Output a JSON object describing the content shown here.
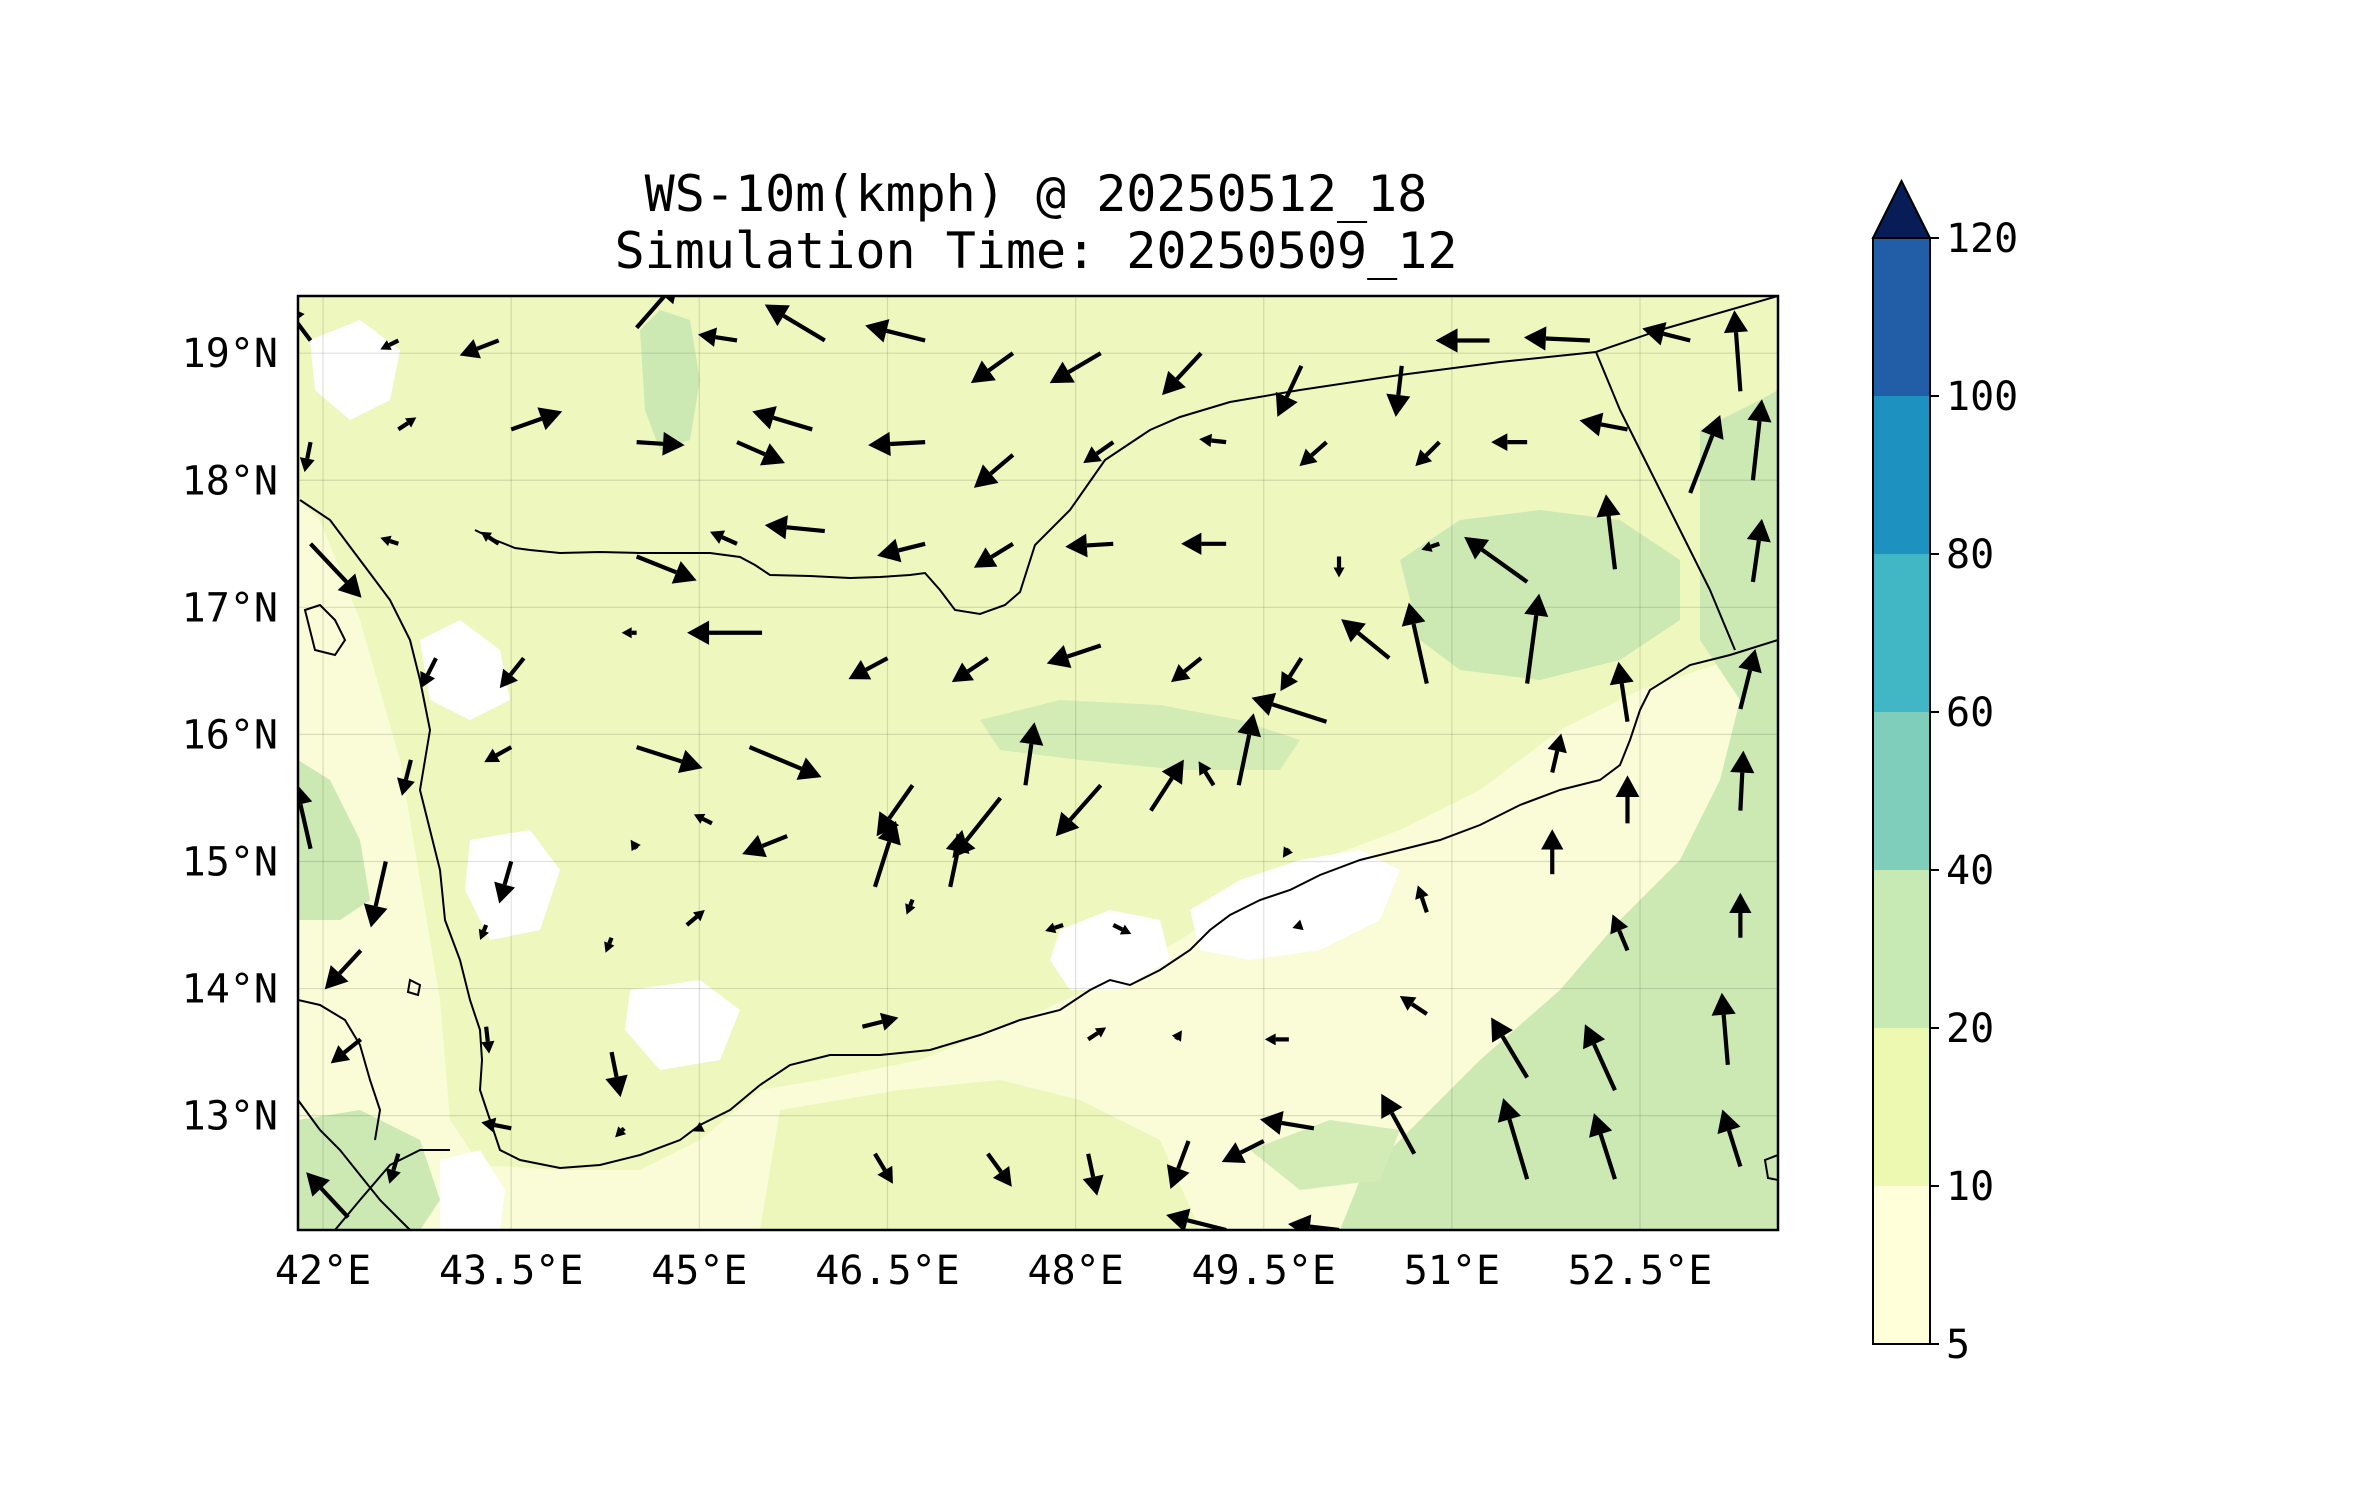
{
  "title": {
    "line1": "WS-10m(kmph) @ 20250512_18",
    "line2": "Simulation Time: 20250509_12"
  },
  "map": {
    "lon_range": [
      41.8,
      53.6
    ],
    "lat_range": [
      12.1,
      19.45
    ],
    "lon_ticks": [
      {
        "v": 42.0,
        "label": "42°E"
      },
      {
        "v": 43.5,
        "label": "43.5°E"
      },
      {
        "v": 45.0,
        "label": "45°E"
      },
      {
        "v": 46.5,
        "label": "46.5°E"
      },
      {
        "v": 48.0,
        "label": "48°E"
      },
      {
        "v": 49.5,
        "label": "49.5°E"
      },
      {
        "v": 51.0,
        "label": "51°E"
      },
      {
        "v": 52.5,
        "label": "52.5°E"
      }
    ],
    "lat_ticks": [
      {
        "v": 19,
        "label": "19°N"
      },
      {
        "v": 18,
        "label": "18°N"
      },
      {
        "v": 17,
        "label": "17°N"
      },
      {
        "v": 16,
        "label": "16°N"
      },
      {
        "v": 15,
        "label": "15°N"
      },
      {
        "v": 14,
        "label": "14°N"
      },
      {
        "v": 13,
        "label": "13°N"
      }
    ],
    "gridlines": true,
    "fill_colors": {
      "ocean_5_10": "#ffffe0",
      "land_10_20": "#eff8c0",
      "band_20_40": "#cce9b4",
      "calm": "#ffffff"
    }
  },
  "colorbar": {
    "levels": [
      "5",
      "10",
      "20",
      "40",
      "60",
      "80",
      "100",
      "120"
    ],
    "colors": [
      "#ffffd9",
      "#edf8b1",
      "#c7e9b4",
      "#7fcdbb",
      "#41b6c4",
      "#1d91c0",
      "#225ea8",
      "#253494"
    ],
    "extend_color": "#081d58",
    "extend": "max"
  },
  "wind_vectors": [
    {
      "lon": 41.9,
      "lat": 19.1,
      "u": -0.9,
      "v": 1.2
    },
    {
      "lon": 42.6,
      "lat": 19.1,
      "u": -0.6,
      "v": -0.3
    },
    {
      "lon": 43.4,
      "lat": 19.1,
      "u": -1.3,
      "v": -0.5
    },
    {
      "lon": 44.5,
      "lat": 19.2,
      "u": 1.4,
      "v": 1.6
    },
    {
      "lon": 45.3,
      "lat": 19.1,
      "u": -1.3,
      "v": 0.2
    },
    {
      "lon": 46.0,
      "lat": 19.1,
      "u": -2.0,
      "v": 1.2
    },
    {
      "lon": 46.8,
      "lat": 19.1,
      "u": -2.0,
      "v": 0.5
    },
    {
      "lon": 47.5,
      "lat": 19.0,
      "u": -1.4,
      "v": -1.0
    },
    {
      "lon": 48.2,
      "lat": 19.0,
      "u": -1.7,
      "v": -1.0
    },
    {
      "lon": 49.0,
      "lat": 19.0,
      "u": -1.3,
      "v": -1.4
    },
    {
      "lon": 49.8,
      "lat": 18.9,
      "u": -0.8,
      "v": -1.7
    },
    {
      "lon": 50.6,
      "lat": 18.9,
      "u": -0.2,
      "v": -1.7
    },
    {
      "lon": 51.3,
      "lat": 19.1,
      "u": -1.8,
      "v": 0.0
    },
    {
      "lon": 52.1,
      "lat": 19.1,
      "u": -2.2,
      "v": 0.1
    },
    {
      "lon": 52.9,
      "lat": 19.1,
      "u": -1.6,
      "v": 0.4
    },
    {
      "lon": 53.3,
      "lat": 18.7,
      "u": -0.2,
      "v": 2.7
    },
    {
      "lon": 41.9,
      "lat": 18.3,
      "u": -0.2,
      "v": -1.0
    },
    {
      "lon": 42.6,
      "lat": 18.4,
      "u": 0.6,
      "v": 0.4
    },
    {
      "lon": 43.5,
      "lat": 18.4,
      "u": 1.7,
      "v": 0.6
    },
    {
      "lon": 44.5,
      "lat": 18.3,
      "u": 1.6,
      "v": -0.1
    },
    {
      "lon": 45.3,
      "lat": 18.3,
      "u": 1.6,
      "v": -0.7
    },
    {
      "lon": 45.9,
      "lat": 18.4,
      "u": -2.0,
      "v": 0.6
    },
    {
      "lon": 46.8,
      "lat": 18.3,
      "u": -1.9,
      "v": -0.1
    },
    {
      "lon": 47.5,
      "lat": 18.2,
      "u": -1.3,
      "v": -1.1
    },
    {
      "lon": 48.3,
      "lat": 18.3,
      "u": -1.0,
      "v": -0.7
    },
    {
      "lon": 49.2,
      "lat": 18.3,
      "u": -0.9,
      "v": 0.1
    },
    {
      "lon": 50.0,
      "lat": 18.3,
      "u": -0.9,
      "v": -0.8
    },
    {
      "lon": 50.9,
      "lat": 18.3,
      "u": -0.8,
      "v": -0.8
    },
    {
      "lon": 51.6,
      "lat": 18.3,
      "u": -1.2,
      "v": 0.0
    },
    {
      "lon": 52.4,
      "lat": 18.4,
      "u": -1.6,
      "v": 0.3
    },
    {
      "lon": 52.9,
      "lat": 17.9,
      "u": 1.0,
      "v": 2.6
    },
    {
      "lon": 53.4,
      "lat": 18.0,
      "u": 0.3,
      "v": 2.7
    },
    {
      "lon": 41.9,
      "lat": 17.5,
      "u": 1.7,
      "v": -1.8
    },
    {
      "lon": 42.6,
      "lat": 17.5,
      "u": -0.6,
      "v": 0.2
    },
    {
      "lon": 43.4,
      "lat": 17.5,
      "u": -0.6,
      "v": 0.4
    },
    {
      "lon": 44.5,
      "lat": 17.4,
      "u": 2.0,
      "v": -0.8
    },
    {
      "lon": 45.3,
      "lat": 17.5,
      "u": -0.9,
      "v": 0.4
    },
    {
      "lon": 46.0,
      "lat": 17.6,
      "u": -2.0,
      "v": 0.2
    },
    {
      "lon": 46.8,
      "lat": 17.5,
      "u": -1.6,
      "v": -0.4
    },
    {
      "lon": 47.5,
      "lat": 17.5,
      "u": -1.3,
      "v": -0.8
    },
    {
      "lon": 48.3,
      "lat": 17.5,
      "u": -1.6,
      "v": -0.1
    },
    {
      "lon": 49.2,
      "lat": 17.5,
      "u": -1.5,
      "v": 0.0
    },
    {
      "lon": 50.1,
      "lat": 17.4,
      "u": 0.0,
      "v": -0.7
    },
    {
      "lon": 50.9,
      "lat": 17.5,
      "u": -0.6,
      "v": -0.2
    },
    {
      "lon": 51.6,
      "lat": 17.2,
      "u": -2.1,
      "v": 1.5
    },
    {
      "lon": 52.3,
      "lat": 17.3,
      "u": -0.3,
      "v": 2.5
    },
    {
      "lon": 53.4,
      "lat": 17.2,
      "u": 0.3,
      "v": 2.1
    },
    {
      "lon": 42.9,
      "lat": 16.6,
      "u": -0.5,
      "v": -1.0
    },
    {
      "lon": 43.6,
      "lat": 16.6,
      "u": -0.8,
      "v": -1.0
    },
    {
      "lon": 44.5,
      "lat": 16.8,
      "u": -0.5,
      "v": 0.0
    },
    {
      "lon": 45.5,
      "lat": 16.8,
      "u": -2.5,
      "v": 0.0
    },
    {
      "lon": 46.5,
      "lat": 16.6,
      "u": -1.3,
      "v": -0.7
    },
    {
      "lon": 47.3,
      "lat": 16.6,
      "u": -1.2,
      "v": -0.8
    },
    {
      "lon": 48.2,
      "lat": 16.7,
      "u": -1.8,
      "v": -0.6
    },
    {
      "lon": 49.0,
      "lat": 16.6,
      "u": -1.0,
      "v": -0.8
    },
    {
      "lon": 49.8,
      "lat": 16.6,
      "u": -0.7,
      "v": -1.1
    },
    {
      "lon": 50.5,
      "lat": 16.6,
      "u": -1.6,
      "v": 1.3
    },
    {
      "lon": 50.8,
      "lat": 16.4,
      "u": -0.6,
      "v": 2.7
    },
    {
      "lon": 51.6,
      "lat": 16.4,
      "u": 0.4,
      "v": 3.0
    },
    {
      "lon": 52.4,
      "lat": 16.1,
      "u": -0.3,
      "v": 2.0
    },
    {
      "lon": 53.3,
      "lat": 16.2,
      "u": 0.5,
      "v": 2.0
    },
    {
      "lon": 42.7,
      "lat": 15.8,
      "u": -0.3,
      "v": -1.2
    },
    {
      "lon": 43.5,
      "lat": 15.9,
      "u": -0.9,
      "v": -0.5
    },
    {
      "lon": 44.5,
      "lat": 15.9,
      "u": 2.2,
      "v": -0.7
    },
    {
      "lon": 45.4,
      "lat": 15.9,
      "u": 2.4,
      "v": -1.0
    },
    {
      "lon": 46.7,
      "lat": 15.6,
      "u": -1.2,
      "v": -1.7
    },
    {
      "lon": 47.4,
      "lat": 15.5,
      "u": -1.6,
      "v": -2.0
    },
    {
      "lon": 48.2,
      "lat": 15.6,
      "u": -1.5,
      "v": -1.7
    },
    {
      "lon": 49.1,
      "lat": 15.6,
      "u": -0.5,
      "v": 0.8
    },
    {
      "lon": 50.0,
      "lat": 16.1,
      "u": -2.5,
      "v": 0.8
    },
    {
      "lon": 41.9,
      "lat": 15.1,
      "u": -0.5,
      "v": 2.2
    },
    {
      "lon": 42.5,
      "lat": 15.0,
      "u": -0.5,
      "v": -2.2
    },
    {
      "lon": 43.5,
      "lat": 15.0,
      "u": -0.4,
      "v": -1.4
    },
    {
      "lon": 44.5,
      "lat": 15.1,
      "u": -0.2,
      "v": 0.3
    },
    {
      "lon": 45.1,
      "lat": 15.3,
      "u": -0.6,
      "v": 0.3
    },
    {
      "lon": 45.7,
      "lat": 15.2,
      "u": -1.5,
      "v": -0.6
    },
    {
      "lon": 46.4,
      "lat": 14.8,
      "u": 0.7,
      "v": 2.2
    },
    {
      "lon": 47.0,
      "lat": 14.8,
      "u": 0.4,
      "v": 1.9
    },
    {
      "lon": 47.6,
      "lat": 15.6,
      "u": 0.3,
      "v": 2.1
    },
    {
      "lon": 48.6,
      "lat": 15.4,
      "u": 1.1,
      "v": 1.7
    },
    {
      "lon": 49.3,
      "lat": 15.6,
      "u": 0.5,
      "v": 2.4
    },
    {
      "lon": 49.7,
      "lat": 15.1,
      "u": -0.2,
      "v": -0.3
    },
    {
      "lon": 51.8,
      "lat": 15.7,
      "u": 0.3,
      "v": 1.3
    },
    {
      "lon": 52.4,
      "lat": 15.3,
      "u": 0.0,
      "v": 1.6
    },
    {
      "lon": 53.3,
      "lat": 15.4,
      "u": 0.1,
      "v": 2.0
    },
    {
      "lon": 42.3,
      "lat": 14.3,
      "u": -1.2,
      "v": -1.3
    },
    {
      "lon": 43.3,
      "lat": 14.5,
      "u": -0.2,
      "v": -0.5
    },
    {
      "lon": 44.3,
      "lat": 14.4,
      "u": -0.2,
      "v": -0.5
    },
    {
      "lon": 44.9,
      "lat": 14.5,
      "u": 0.6,
      "v": 0.5
    },
    {
      "lon": 46.7,
      "lat": 14.7,
      "u": -0.2,
      "v": -0.5
    },
    {
      "lon": 47.9,
      "lat": 14.5,
      "u": -0.6,
      "v": -0.2
    },
    {
      "lon": 48.3,
      "lat": 14.5,
      "u": 0.6,
      "v": -0.3
    },
    {
      "lon": 49.8,
      "lat": 14.5,
      "u": -0.3,
      "v": -0.1
    },
    {
      "lon": 50.8,
      "lat": 14.6,
      "u": -0.3,
      "v": 0.9
    },
    {
      "lon": 51.8,
      "lat": 14.9,
      "u": 0.0,
      "v": 1.5
    },
    {
      "lon": 52.4,
      "lat": 14.3,
      "u": -0.5,
      "v": 1.2
    },
    {
      "lon": 53.3,
      "lat": 14.4,
      "u": 0.0,
      "v": 1.5
    },
    {
      "lon": 42.3,
      "lat": 13.6,
      "u": -1.0,
      "v": -0.8
    },
    {
      "lon": 43.3,
      "lat": 13.7,
      "u": 0.1,
      "v": -0.9
    },
    {
      "lon": 44.3,
      "lat": 13.5,
      "u": 0.3,
      "v": -1.5
    },
    {
      "lon": 46.3,
      "lat": 13.7,
      "u": 1.2,
      "v": 0.3
    },
    {
      "lon": 48.1,
      "lat": 13.6,
      "u": 0.6,
      "v": 0.4
    },
    {
      "lon": 48.8,
      "lat": 13.6,
      "u": 0.2,
      "v": 0.3
    },
    {
      "lon": 49.7,
      "lat": 13.6,
      "u": -0.8,
      "v": 0.0
    },
    {
      "lon": 50.8,
      "lat": 13.8,
      "u": -0.9,
      "v": 0.6
    },
    {
      "lon": 51.6,
      "lat": 13.3,
      "u": -1.2,
      "v": 2.0
    },
    {
      "lon": 52.3,
      "lat": 13.2,
      "u": -1.0,
      "v": 2.2
    },
    {
      "lon": 53.2,
      "lat": 13.4,
      "u": -0.2,
      "v": 2.4
    },
    {
      "lon": 42.6,
      "lat": 12.7,
      "u": -0.3,
      "v": -1.0
    },
    {
      "lon": 43.5,
      "lat": 12.9,
      "u": -1.0,
      "v": 0.2
    },
    {
      "lon": 44.4,
      "lat": 12.9,
      "u": -0.3,
      "v": -0.3
    },
    {
      "lon": 45.0,
      "lat": 12.9,
      "u": -0.2,
      "v": -0.1
    },
    {
      "lon": 46.4,
      "lat": 12.7,
      "u": 0.6,
      "v": -1.0
    },
    {
      "lon": 47.3,
      "lat": 12.7,
      "u": 0.8,
      "v": -1.1
    },
    {
      "lon": 48.1,
      "lat": 12.7,
      "u": 0.3,
      "v": -1.4
    },
    {
      "lon": 48.9,
      "lat": 12.8,
      "u": -0.6,
      "v": -1.6
    },
    {
      "lon": 49.5,
      "lat": 12.8,
      "u": -1.4,
      "v": -0.7
    },
    {
      "lon": 49.9,
      "lat": 12.9,
      "u": -1.8,
      "v": 0.3
    },
    {
      "lon": 50.7,
      "lat": 12.7,
      "u": -1.1,
      "v": 2.0
    },
    {
      "lon": 51.6,
      "lat": 12.5,
      "u": -0.8,
      "v": 2.7
    },
    {
      "lon": 52.3,
      "lat": 12.5,
      "u": -0.7,
      "v": 2.2
    },
    {
      "lon": 53.3,
      "lat": 12.6,
      "u": -0.6,
      "v": 1.9
    },
    {
      "lon": 42.2,
      "lat": 12.2,
      "u": -1.4,
      "v": 1.5
    },
    {
      "lon": 49.2,
      "lat": 12.1,
      "u": -2.0,
      "v": 0.5
    },
    {
      "lon": 50.1,
      "lat": 12.1,
      "u": -1.7,
      "v": 0.2
    }
  ]
}
